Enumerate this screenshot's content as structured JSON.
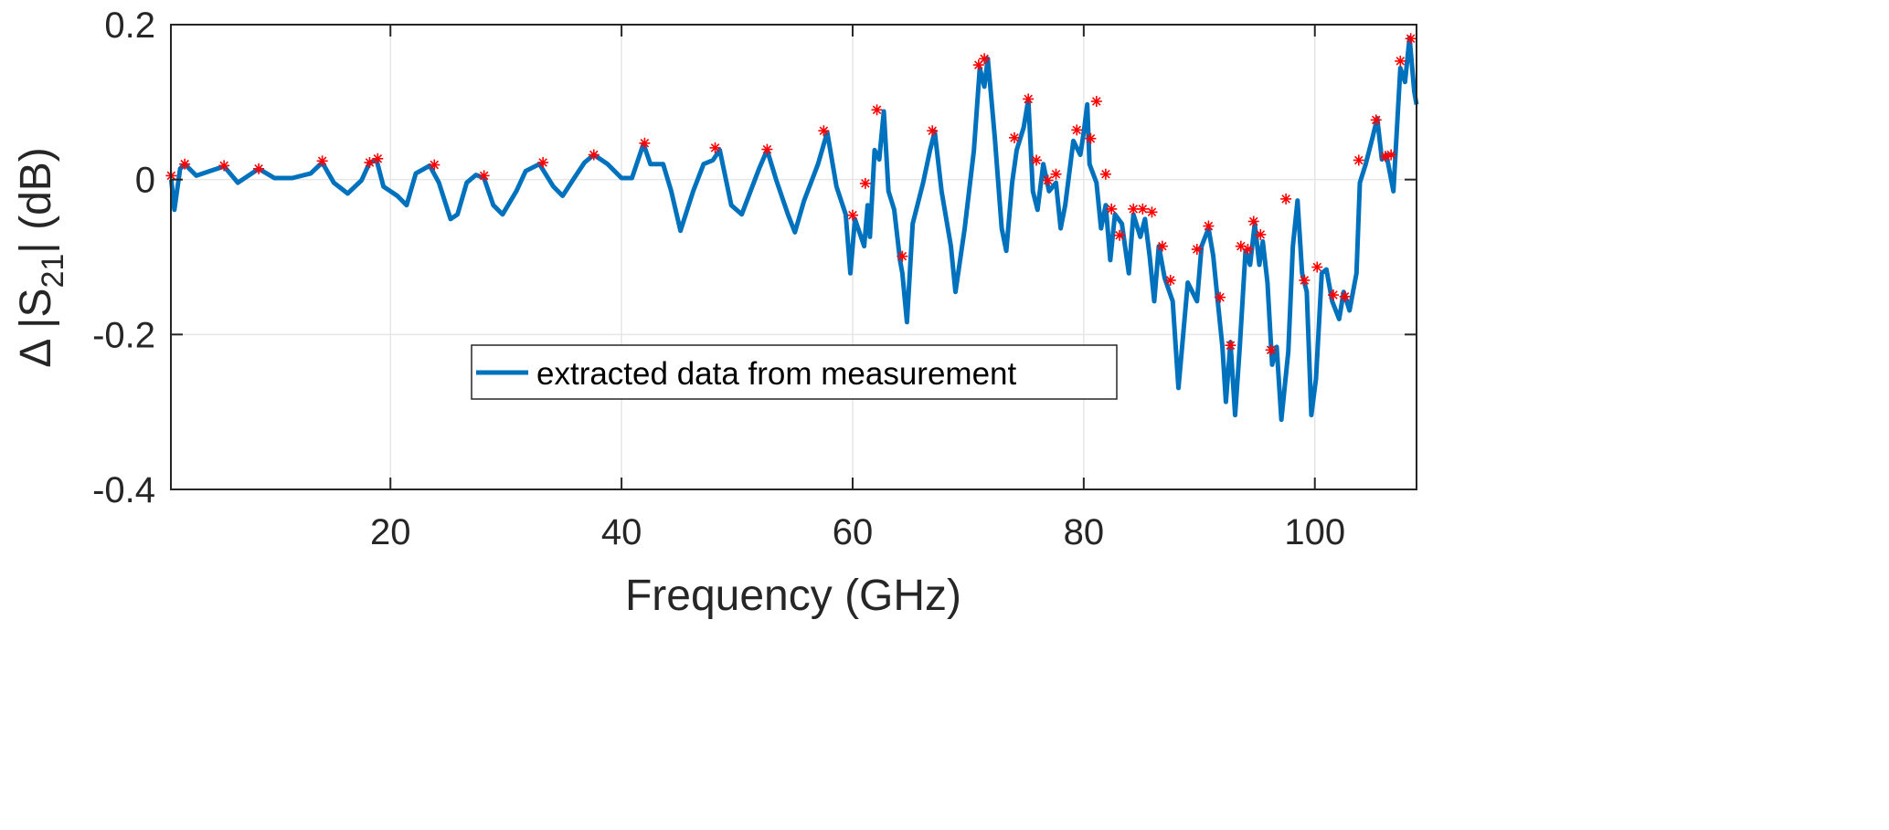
{
  "chart_data": {
    "type": "line",
    "title": "",
    "xlabel": "Frequency (GHz)",
    "ylabel": {
      "prefix": "Δ |S",
      "sub": "21",
      "suffix": "| (dB)"
    },
    "xlim": [
      1,
      108.8
    ],
    "ylim": [
      -0.4,
      0.2
    ],
    "xticks": [
      20,
      40,
      60,
      80,
      100
    ],
    "xtick_labels": [
      "20",
      "40",
      "60",
      "80",
      "100"
    ],
    "yticks": [
      0.2,
      0,
      -0.2,
      -0.4
    ],
    "ytick_labels": [
      "0.2",
      "0",
      "-0.2",
      "-0.4"
    ],
    "grid": true,
    "legend": {
      "placement": "bottom-center",
      "entries": [
        "extracted data from measurement"
      ]
    },
    "colors": {
      "series": "#0072BD",
      "markers": "#FF0000",
      "grid": "#E6E6E6",
      "axes": "#262626"
    },
    "series": [
      {
        "name": "extracted data from measurement",
        "x": [
          1.03,
          1.3,
          1.8,
          2.2,
          3.2,
          4.4,
          5.6,
          6.8,
          8.6,
          9.96,
          11.5,
          13.1,
          14.1,
          15.1,
          16.3,
          17.5,
          18.2,
          18.8,
          19.4,
          20.6,
          21.4,
          22.2,
          23.4,
          24.2,
          25.2,
          25.8,
          26.6,
          27.4,
          28.1,
          28.9,
          29.7,
          30.9,
          31.7,
          32.9,
          34.1,
          34.9,
          35.9,
          36.8,
          37.6,
          38.8,
          40,
          40.9,
          41.9,
          42.5,
          43.6,
          44.3,
          45.1,
          46.2,
          47.1,
          47.9,
          48.5,
          49.5,
          50.4,
          51.9,
          52.6,
          53.4,
          54.4,
          55,
          55.8,
          57,
          57.8,
          58.6,
          59.4,
          59.8,
          60.2,
          61,
          61.3,
          61.5,
          61.9,
          62.3,
          62.7,
          63.1,
          63.6,
          64.1,
          64.3,
          64.7,
          65.2,
          66.1,
          66.7,
          67.1,
          67.7,
          68.5,
          68.9,
          69.7,
          70.5,
          71,
          71.4,
          71.7,
          72.3,
          72.9,
          73.3,
          73.8,
          74.2,
          74.8,
          75.2,
          75.6,
          76,
          76.5,
          77,
          77.6,
          78,
          78.4,
          79.1,
          79.7,
          80,
          80.3,
          80.5,
          81.1,
          81.5,
          81.9,
          82.3,
          82.7,
          83.3,
          83.9,
          84.3,
          84.9,
          85.3,
          85.7,
          86.1,
          86.5,
          87,
          87.7,
          88.2,
          89,
          89.8,
          90.2,
          90.8,
          91.2,
          91.6,
          92,
          92.3,
          92.7,
          93.1,
          93.5,
          94,
          94.4,
          94.8,
          95.2,
          95.5,
          95.9,
          96.3,
          96.7,
          97.1,
          97.7,
          98.1,
          98.5,
          98.9,
          99.3,
          99.7,
          100.1,
          100.6,
          101,
          101.5,
          102.1,
          102.5,
          103,
          103.6,
          103.9,
          104.4,
          105,
          105.4,
          105.8,
          106.2,
          106.8,
          107.4,
          107.8,
          108.2,
          108.6,
          108.8
        ],
        "y": [
          0,
          -0.039,
          0.014,
          0.02,
          0.005,
          0.011,
          0.017,
          -0.004,
          0.014,
          0.002,
          0.002,
          0.008,
          0.022,
          -0.004,
          -0.018,
          -0.001,
          0.022,
          0.025,
          -0.009,
          -0.021,
          -0.033,
          0.008,
          0.018,
          -0.004,
          -0.051,
          -0.045,
          -0.004,
          0.006,
          0.002,
          -0.033,
          -0.045,
          -0.015,
          0.011,
          0.02,
          -0.009,
          -0.021,
          0.002,
          0.022,
          0.032,
          0.02,
          0.002,
          0.002,
          0.046,
          0.02,
          0.02,
          -0.015,
          -0.066,
          -0.015,
          0.02,
          0.025,
          0.038,
          -0.033,
          -0.045,
          0.014,
          0.038,
          -0.001,
          -0.045,
          -0.068,
          -0.027,
          0.02,
          0.061,
          -0.009,
          -0.045,
          -0.121,
          -0.051,
          -0.086,
          -0.033,
          -0.074,
          0.038,
          0.026,
          0.088,
          -0.015,
          -0.039,
          -0.104,
          -0.121,
          -0.184,
          -0.057,
          -0.004,
          0.038,
          0.062,
          -0.015,
          -0.086,
          -0.145,
          -0.063,
          0.038,
          0.144,
          0.12,
          0.156,
          0.055,
          -0.063,
          -0.092,
          -0.004,
          0.038,
          0.067,
          0.103,
          -0.015,
          -0.039,
          0.02,
          -0.015,
          -0.004,
          -0.063,
          -0.033,
          0.05,
          0.032,
          0.061,
          0.097,
          0.02,
          -0.004,
          -0.063,
          -0.033,
          -0.104,
          -0.045,
          -0.057,
          -0.121,
          -0.045,
          -0.074,
          -0.051,
          -0.098,
          -0.157,
          -0.086,
          -0.127,
          -0.157,
          -0.269,
          -0.133,
          -0.157,
          -0.086,
          -0.063,
          -0.098,
          -0.157,
          -0.216,
          -0.287,
          -0.21,
          -0.304,
          -0.216,
          -0.092,
          -0.11,
          -0.057,
          -0.11,
          -0.08,
          -0.133,
          -0.239,
          -0.216,
          -0.31,
          -0.222,
          -0.086,
          -0.027,
          -0.121,
          -0.145,
          -0.304,
          -0.257,
          -0.121,
          -0.116,
          -0.157,
          -0.18,
          -0.145,
          -0.169,
          -0.121,
          -0.004,
          0.02,
          0.055,
          0.079,
          0.026,
          0.032,
          -0.015,
          0.144,
          0.126,
          0.183,
          0.114,
          0.097
        ]
      },
      {
        "name": "peaks",
        "marker": "asterisk",
        "x": [
          1.03,
          2.2,
          5.6,
          8.6,
          14.1,
          18.2,
          18.9,
          23.8,
          28.1,
          33.2,
          37.6,
          42,
          48.1,
          52.6,
          57.5,
          60,
          61.1,
          62.1,
          64.3,
          66.9,
          70.9,
          71.4,
          74,
          75.2,
          75.9,
          76.9,
          77.6,
          79.4,
          80.6,
          81.1,
          81.9,
          82.4,
          83.1,
          84.3,
          85.1,
          85.9,
          86.8,
          87.5,
          89.8,
          90.8,
          91.8,
          92.7,
          93.6,
          94.2,
          94.7,
          95.3,
          96.2,
          97.5,
          99.1,
          100.2,
          101.6,
          102.6,
          103.8,
          105.3,
          106.1,
          106.6,
          107.4,
          108.3
        ],
        "y": [
          0.005,
          0.02,
          0.018,
          0.014,
          0.024,
          0.022,
          0.027,
          0.019,
          0.005,
          0.022,
          0.032,
          0.047,
          0.041,
          0.039,
          0.063,
          -0.046,
          -0.005,
          0.09,
          -0.099,
          0.063,
          0.148,
          0.156,
          0.054,
          0.104,
          0.025,
          -0.001,
          0.007,
          0.064,
          0.053,
          0.101,
          0.007,
          -0.038,
          -0.072,
          -0.038,
          -0.038,
          -0.042,
          -0.086,
          -0.13,
          -0.09,
          -0.06,
          -0.152,
          -0.214,
          -0.086,
          -0.09,
          -0.054,
          -0.071,
          -0.22,
          -0.025,
          -0.13,
          -0.113,
          -0.149,
          -0.151,
          0.025,
          0.077,
          0.03,
          0.032,
          0.153,
          0.182
        ]
      }
    ]
  }
}
